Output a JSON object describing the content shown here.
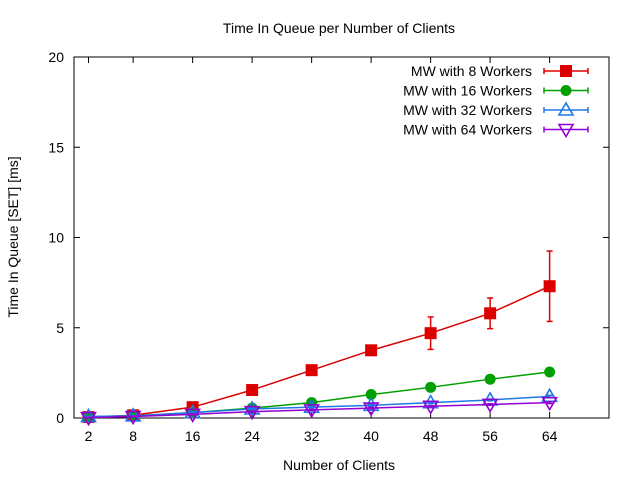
{
  "chart_data": {
    "type": "line",
    "title": "Time In Queue per Number of Clients",
    "xlabel": "Number of Clients",
    "ylabel": "Time In Queue [SET] [ms]",
    "x": [
      2,
      8,
      16,
      24,
      32,
      40,
      48,
      56,
      64
    ],
    "xticks": [
      2,
      8,
      16,
      24,
      32,
      40,
      48,
      56,
      64
    ],
    "yticks": [
      0,
      5,
      10,
      15,
      20
    ],
    "ylim": [
      0,
      20
    ],
    "grid": false,
    "legend_position": "top-right",
    "series": [
      {
        "name": "MW with 8 Workers",
        "color": "#dd0000",
        "marker": "square",
        "values": [
          0.05,
          0.15,
          0.6,
          1.55,
          2.65,
          3.75,
          4.7,
          5.8,
          7.3
        ],
        "error": [
          0.02,
          0.05,
          0.1,
          0.1,
          0.15,
          0.2,
          0.9,
          0.85,
          1.95
        ]
      },
      {
        "name": "MW with 16 Workers",
        "color": "#00a000",
        "marker": "circle",
        "values": [
          0.05,
          0.12,
          0.3,
          0.55,
          0.85,
          1.3,
          1.7,
          2.15,
          2.55
        ],
        "error": [
          0.02,
          0.03,
          0.05,
          0.05,
          0.05,
          0.05,
          0.05,
          0.05,
          0.05
        ]
      },
      {
        "name": "MW with 32 Workers",
        "color": "#1e78e6",
        "marker": "triangle",
        "values": [
          0.08,
          0.12,
          0.3,
          0.5,
          0.6,
          0.7,
          0.85,
          1.0,
          1.2
        ],
        "error": [
          0.02,
          0.03,
          0.04,
          0.04,
          0.04,
          0.05,
          0.05,
          0.05,
          0.06
        ]
      },
      {
        "name": "MW with 64 Workers",
        "color": "#9400d3",
        "marker": "triangle-down",
        "values": [
          0.02,
          0.08,
          0.2,
          0.35,
          0.45,
          0.55,
          0.65,
          0.75,
          0.85
        ],
        "error": [
          0.01,
          0.02,
          0.03,
          0.03,
          0.03,
          0.04,
          0.04,
          0.04,
          0.05
        ]
      }
    ]
  }
}
